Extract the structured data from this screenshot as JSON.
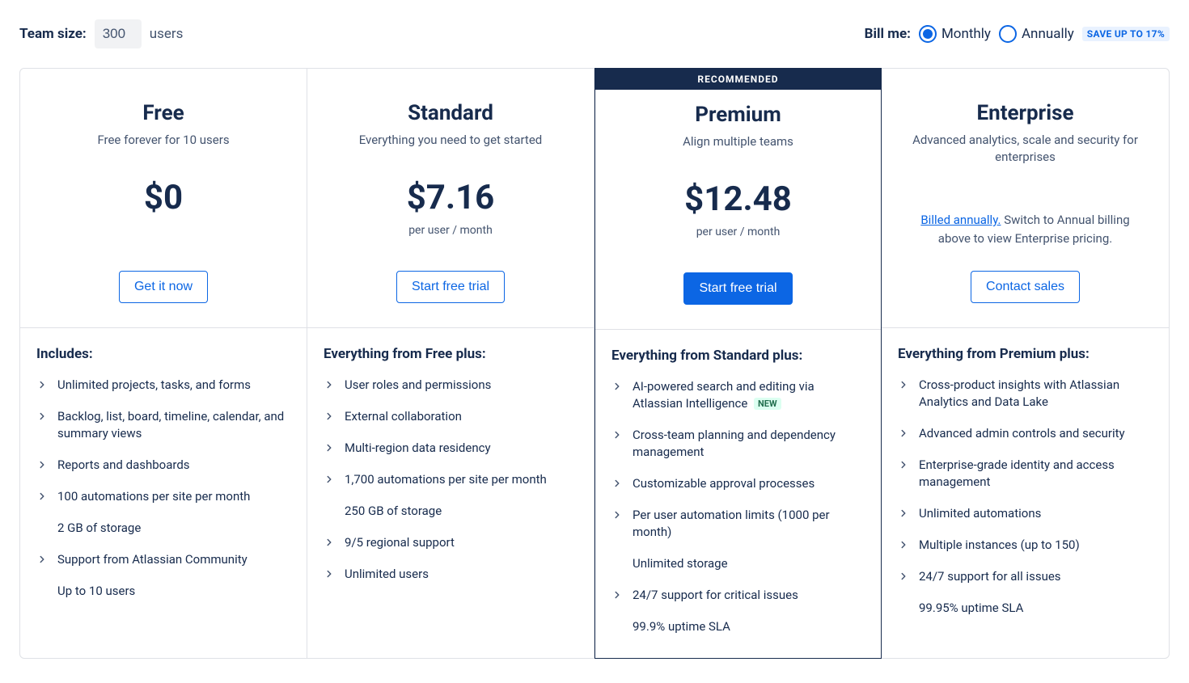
{
  "topbar": {
    "team_size_label": "Team size:",
    "team_size_value": "300",
    "users_suffix": "users",
    "bill_label": "Bill me:",
    "monthly_label": "Monthly",
    "annually_label": "Annually",
    "save_badge": "SAVE UP TO 17%",
    "selected": "monthly"
  },
  "plans": [
    {
      "name": "Free",
      "subtitle": "Free forever for 10 users",
      "price": "$0",
      "price_note": "",
      "button_label": "Get it now",
      "button_style": "outline",
      "recommended": false,
      "enterprise_note": null,
      "features_title": "Includes:",
      "features": [
        {
          "text": "Unlimited projects, tasks, and forms",
          "chevron": true
        },
        {
          "text": "Backlog, list, board, timeline, calendar, and summary views",
          "chevron": true
        },
        {
          "text": "Reports and dashboards",
          "chevron": true
        },
        {
          "text": "100 automations per site per month",
          "chevron": true
        },
        {
          "text": "2 GB of storage",
          "chevron": false
        },
        {
          "text": "Support from Atlassian Community",
          "chevron": true
        },
        {
          "text": "Up to 10 users",
          "chevron": false
        }
      ]
    },
    {
      "name": "Standard",
      "subtitle": "Everything you need to get started",
      "price": "$7.16",
      "price_note": "per user / month",
      "button_label": "Start free trial",
      "button_style": "outline",
      "recommended": false,
      "enterprise_note": null,
      "features_title": "Everything from Free plus:",
      "features": [
        {
          "text": "User roles and permissions",
          "chevron": true
        },
        {
          "text": "External collaboration",
          "chevron": true
        },
        {
          "text": "Multi-region data residency",
          "chevron": true
        },
        {
          "text": "1,700 automations per site per month",
          "chevron": true
        },
        {
          "text": "250 GB of storage",
          "chevron": false
        },
        {
          "text": "9/5 regional support",
          "chevron": true
        },
        {
          "text": "Unlimited users",
          "chevron": true
        }
      ]
    },
    {
      "name": "Premium",
      "subtitle": "Align multiple teams",
      "price": "$12.48",
      "price_note": "per user / month",
      "button_label": "Start free trial",
      "button_style": "primary",
      "recommended": true,
      "recommended_label": "RECOMMENDED",
      "enterprise_note": null,
      "features_title": "Everything from Standard plus:",
      "features": [
        {
          "text": "AI-powered search and editing via Atlassian Intelligence",
          "chevron": true,
          "badge": "NEW"
        },
        {
          "text": "Cross-team planning and dependency management",
          "chevron": true
        },
        {
          "text": "Customizable approval processes",
          "chevron": true
        },
        {
          "text": "Per user automation limits (1000 per month)",
          "chevron": true
        },
        {
          "text": "Unlimited storage",
          "chevron": false
        },
        {
          "text": "24/7 support for critical issues",
          "chevron": true
        },
        {
          "text": "99.9% uptime SLA",
          "chevron": false
        }
      ]
    },
    {
      "name": "Enterprise",
      "subtitle": "Advanced analytics, scale and security for enterprises",
      "price": "",
      "price_note": "",
      "button_label": "Contact sales",
      "button_style": "outline",
      "recommended": false,
      "enterprise_note_link": "Billed annually.",
      "enterprise_note_rest": " Switch to Annual billing above to view Enterprise pricing.",
      "features_title": "Everything from Premium plus:",
      "features": [
        {
          "text": "Cross-product insights with Atlassian Analytics and Data Lake",
          "chevron": true
        },
        {
          "text": "Advanced admin controls and security",
          "chevron": true
        },
        {
          "text": "Enterprise-grade identity and access management",
          "chevron": true
        },
        {
          "text": "Unlimited automations",
          "chevron": true
        },
        {
          "text": "Multiple instances (up to 150)",
          "chevron": true
        },
        {
          "text": "24/7 support for all issues",
          "chevron": true
        },
        {
          "text": "99.95% uptime SLA",
          "chevron": false
        }
      ]
    }
  ],
  "colors": {
    "primary": "#0C66E4",
    "text": "#172B4D",
    "muted": "#44546F",
    "border": "#DFE1E6",
    "input_bg": "#F1F2F4",
    "banner_bg": "#172B4D",
    "badge_bg": "#E9F2FF",
    "new_bg": "#DCFFF1",
    "new_text": "#216E4E"
  }
}
